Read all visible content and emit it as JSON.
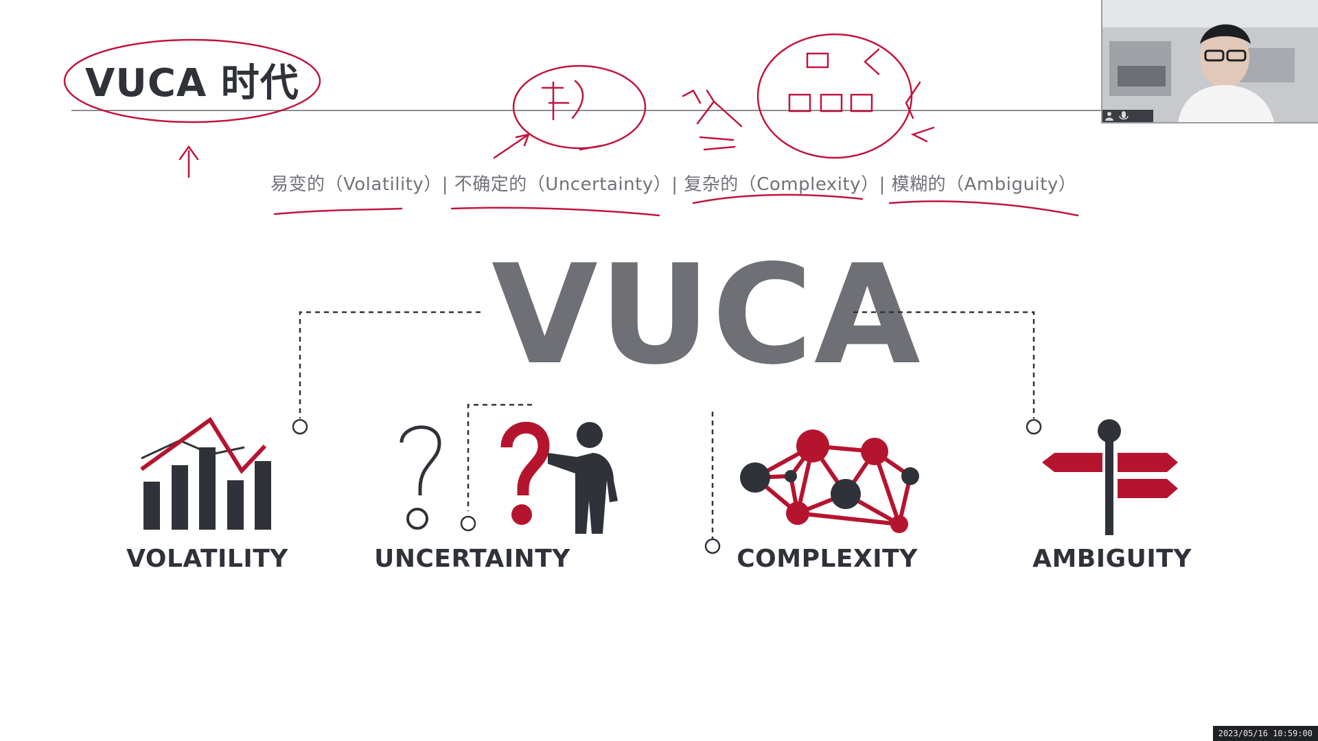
{
  "slide": {
    "title": "VUCA 时代",
    "subtitle": "易变的（Volatility）| 不确定的（Uncertainty）| 复杂的（Complexity）| 模糊的（Ambiguity）",
    "big_heading": "VUCA",
    "labels": {
      "volatility": "VOLATILITY",
      "uncertainty": "UNCERTAINTY",
      "complexity": "COMPLEXITY",
      "ambiguity": "AMBIGUITY"
    }
  },
  "annotations": {
    "handwritten_risk": "风险",
    "handwritten_person": "人",
    "handwritten_pin_color": "#c0143c"
  },
  "colors": {
    "accent_red": "#b5142f",
    "ink_dark": "#2f3238",
    "heading_gray": "#6e7076"
  },
  "webcam": {
    "icons": [
      "person-icon",
      "microphone-icon"
    ]
  },
  "status": {
    "timestamp": "2023/05/16 10:59:00"
  }
}
